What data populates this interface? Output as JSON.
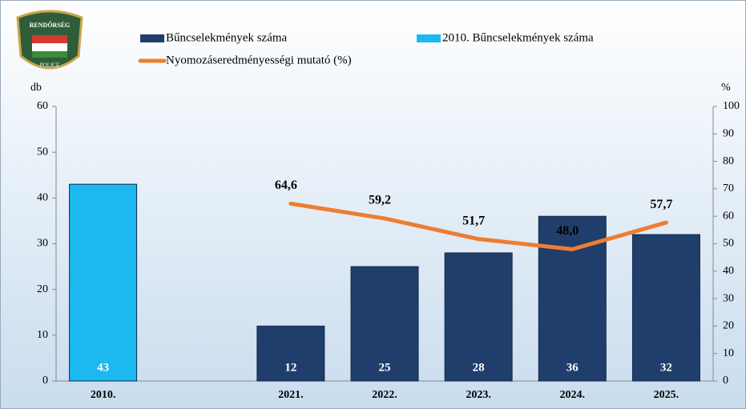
{
  "chart_data": {
    "type": "bar-line",
    "logo": {
      "top": "RENDŐRSÉG",
      "bottom": "POLICE"
    },
    "ylabel": "db",
    "y2label": "%",
    "categories": [
      "2010.",
      null,
      "2021.",
      "2022.",
      "2023.",
      "2024.",
      "2025."
    ],
    "series": [
      {
        "name": "Bűncselekmények száma",
        "color": "#1f3e6b",
        "type": "bar",
        "values": [
          null,
          null,
          12,
          25,
          28,
          36,
          32
        ]
      },
      {
        "name": "2010. Bűncselekmények száma",
        "color": "#1cb8f0",
        "type": "bar",
        "values": [
          43,
          null,
          null,
          null,
          null,
          null,
          null
        ]
      },
      {
        "name": "Nyomozáseredményességi mutató (%)",
        "color": "#ed7d31",
        "type": "line",
        "axis": "y2",
        "values": [
          null,
          null,
          64.6,
          59.2,
          51.7,
          48.0,
          57.7
        ],
        "value_labels": [
          null,
          null,
          "64,6",
          "59,2",
          "51,7",
          "48,0",
          "57,7"
        ]
      }
    ],
    "ylim": [
      0,
      60
    ],
    "yticks": [
      0,
      10,
      20,
      30,
      40,
      50,
      60
    ],
    "y2lim": [
      0,
      100
    ],
    "y2ticks": [
      0,
      10,
      20,
      30,
      40,
      50,
      60,
      70,
      80,
      90,
      100
    ]
  }
}
